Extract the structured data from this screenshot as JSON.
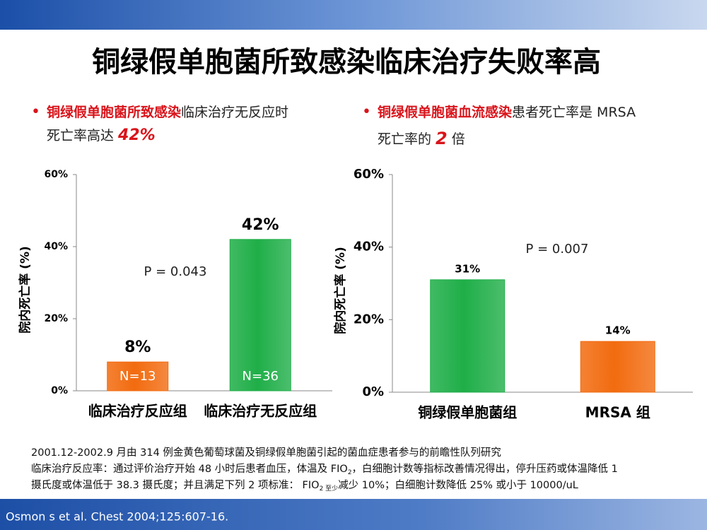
{
  "slide": {
    "title": "铜绿假单胞菌所致感染临床治疗失败率高",
    "bullets": [
      {
        "highlight": "铜绿假单胞菌所致感染",
        "rest": "临床治疗无反应时",
        "line2": "死亡率高达 ",
        "emphasis": "42%"
      },
      {
        "highlight": "铜绿假单胞菌血流感染",
        "rest": "患者死亡率是 MRSA",
        "line2": "死亡率的 ",
        "emphasis": "2",
        "line2_end": " 倍"
      }
    ],
    "footnote": {
      "line1": "2001.12-2002.9 月由 314 例金黄色葡萄球菌及铜绿假单胞菌引起的菌血症患者参与的前瞻性队列研究",
      "line2": [
        "临床治疗反应率：通过评价治疗开始 48 小时后患者血压，体温及 FIO",
        "2",
        "，白细胞计数等指标改善情况得出，停升压药或体温降低 1"
      ],
      "line3": [
        "摄氏度或体温低于 38.3 摄氏度；并且满足下列 2 项标准： FIO",
        "2 至少",
        "减少 10%；白细胞计数降低 25% 或小于 10000/uL"
      ]
    },
    "citation": "Osmon s et al. Chest 2004;125:607-16."
  },
  "chart_data": [
    {
      "type": "bar",
      "ylabel": "院内死亡率 (%)",
      "annotation": "P = 0.043",
      "categories": [
        "临床治疗反应组",
        "临床治疗无反应组"
      ],
      "values": [
        8,
        42
      ],
      "value_labels": [
        "8%",
        "42%"
      ],
      "bar_labels": [
        "N=13",
        "N=36"
      ],
      "colors": [
        "#f26b0f",
        "#1fae48"
      ],
      "ylim": [
        0,
        60
      ],
      "yticks": [
        {
          "value": 0,
          "label": "0%"
        },
        {
          "value": 20,
          "label": "20%"
        },
        {
          "value": 40,
          "label": "40%"
        },
        {
          "value": 60,
          "label": "60%"
        }
      ]
    },
    {
      "type": "bar",
      "ylabel": "院内死亡率 (%)",
      "annotation": "P = 0.007",
      "categories": [
        "铜绿假单胞菌组",
        "MRSA 组"
      ],
      "values": [
        31,
        14
      ],
      "value_labels": [
        "31%",
        "14%"
      ],
      "colors": [
        "#1fae48",
        "#f26b0f"
      ],
      "ylim": [
        0,
        60
      ],
      "yticks": [
        {
          "value": 0,
          "label": "0%"
        },
        {
          "value": 20,
          "label": "20%"
        },
        {
          "value": 40,
          "label": "40%"
        },
        {
          "value": 60,
          "label": "60%"
        }
      ]
    }
  ]
}
